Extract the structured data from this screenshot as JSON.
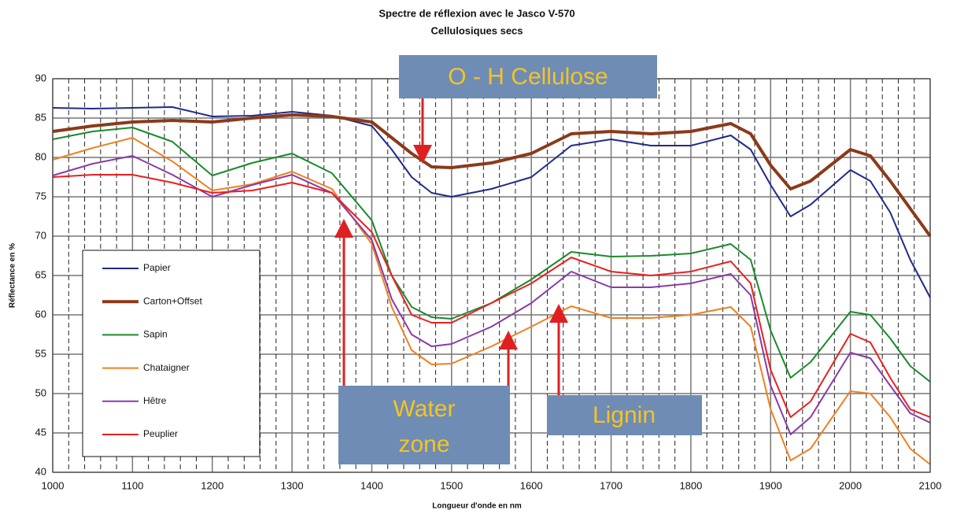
{
  "chart_data": {
    "type": "line",
    "title": "Spectre de réflexion avec le Jasco V-570",
    "subtitle": "Cellulosiques secs",
    "x_label": "Longueur d'onde en nm",
    "y_label": "Réflectance en %",
    "xlim": [
      1000,
      2100
    ],
    "ylim": [
      40,
      90
    ],
    "xticks": [
      1000,
      1100,
      1200,
      1300,
      1400,
      1500,
      1600,
      1700,
      1800,
      1900,
      2000,
      2100
    ],
    "yticks": [
      40,
      45,
      50,
      55,
      60,
      65,
      70,
      75,
      80,
      85,
      90
    ],
    "grid": true,
    "legend": "lower left",
    "x": [
      1000,
      1050,
      1100,
      1150,
      1200,
      1250,
      1300,
      1350,
      1400,
      1425,
      1450,
      1475,
      1500,
      1550,
      1600,
      1650,
      1700,
      1750,
      1800,
      1850,
      1875,
      1900,
      1925,
      1950,
      2000,
      2025,
      2050,
      2075,
      2100
    ],
    "series": [
      {
        "name": "Papier",
        "color": "#1f2a8a",
        "values": [
          86.3,
          86.2,
          86.3,
          86.4,
          85.2,
          85.3,
          85.8,
          85.3,
          84,
          81,
          77.5,
          75.5,
          75,
          76,
          77.5,
          81.5,
          82.3,
          81.5,
          81.5,
          82.8,
          81,
          76.5,
          72.5,
          74,
          78.4,
          77,
          73,
          67,
          62.2
        ]
      },
      {
        "name": "Carton+Offset",
        "color": "#8b3a1a",
        "values": [
          83.3,
          84,
          84.5,
          84.7,
          84.5,
          85,
          85.4,
          85.2,
          84.5,
          82.5,
          80.5,
          78.8,
          78.7,
          79.3,
          80.5,
          83,
          83.3,
          83,
          83.3,
          84.3,
          83,
          79,
          76,
          77,
          81,
          80.2,
          77,
          73.5,
          70
        ]
      },
      {
        "name": "Sapin",
        "color": "#1a8a2a",
        "values": [
          82.3,
          83.3,
          83.8,
          82,
          77.7,
          79.3,
          80.5,
          78,
          72,
          65,
          61,
          59.7,
          59.5,
          61.5,
          64.5,
          68,
          67.4,
          67.5,
          67.8,
          69,
          67,
          58,
          52,
          54,
          60.4,
          60,
          57,
          53.5,
          51.5
        ]
      },
      {
        "name": "Chataigner",
        "color": "#f08020",
        "values": [
          79.7,
          81.2,
          82.5,
          79.5,
          75.8,
          76.6,
          78.2,
          76,
          69,
          61,
          55.5,
          53.7,
          53.8,
          56,
          58.5,
          61.1,
          59.6,
          59.6,
          60,
          61,
          58.5,
          48,
          41.5,
          43,
          50.3,
          50,
          47,
          43,
          41
        ]
      },
      {
        "name": "Hêtre",
        "color": "#8a3aa8",
        "values": [
          77.7,
          79.2,
          80.2,
          77.8,
          75,
          76.5,
          77.8,
          75.5,
          69.5,
          62,
          57.5,
          56,
          56.3,
          58.5,
          61.5,
          65.5,
          63.5,
          63.5,
          64,
          65.2,
          62.5,
          51,
          44.8,
          47,
          55.2,
          54.5,
          51,
          47.5,
          46.3
        ]
      },
      {
        "name": "Peuplier",
        "color": "#e82020",
        "values": [
          77.5,
          77.8,
          77.8,
          76.8,
          75.5,
          75.8,
          76.8,
          75.5,
          70.5,
          65,
          60,
          59,
          59,
          61.5,
          64,
          67.3,
          65.5,
          65,
          65.5,
          66.8,
          64,
          53,
          47,
          49,
          57.6,
          56.5,
          52,
          48,
          47
        ]
      }
    ],
    "annotations": [
      {
        "lines": [
          "O - H Cellulose"
        ]
      },
      {
        "lines": [
          "Water",
          "zone"
        ]
      },
      {
        "lines": [
          "Lignin"
        ]
      }
    ]
  }
}
